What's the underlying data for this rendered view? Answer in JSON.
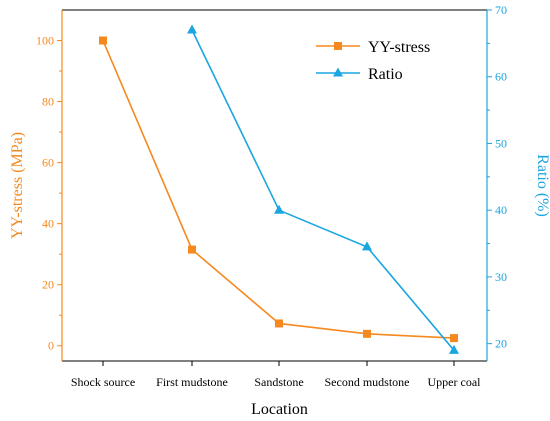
{
  "chart_data": {
    "type": "line",
    "title": "",
    "xlabel": "Location",
    "categories": [
      "Shock source",
      "First mudstone",
      "Sandstone",
      "Second mudstone",
      "Upper coal"
    ],
    "left_axis": {
      "label": "YY-stress (MPa)",
      "ylim": [
        -5,
        110
      ],
      "ticks": [
        "0",
        "20",
        "40",
        "60",
        "80",
        "100"
      ],
      "color": "#F5891F"
    },
    "right_axis": {
      "label": "Ratio (%)",
      "ylim": [
        17.4,
        70
      ],
      "ticks": [
        "20",
        "30",
        "40",
        "50",
        "60",
        "70"
      ],
      "color": "#1AA6E0"
    },
    "series": [
      {
        "name": "YY-stress",
        "axis": "left",
        "marker": "square",
        "color": "#F5891F",
        "values": [
          100,
          31.5,
          7.3,
          3.9,
          2.5
        ]
      },
      {
        "name": "Ratio",
        "axis": "right",
        "marker": "triangle",
        "color": "#1AA6E0",
        "values": [
          null,
          67,
          40,
          34.5,
          19
        ]
      }
    ],
    "legend_position": "top-right",
    "grid": false
  }
}
